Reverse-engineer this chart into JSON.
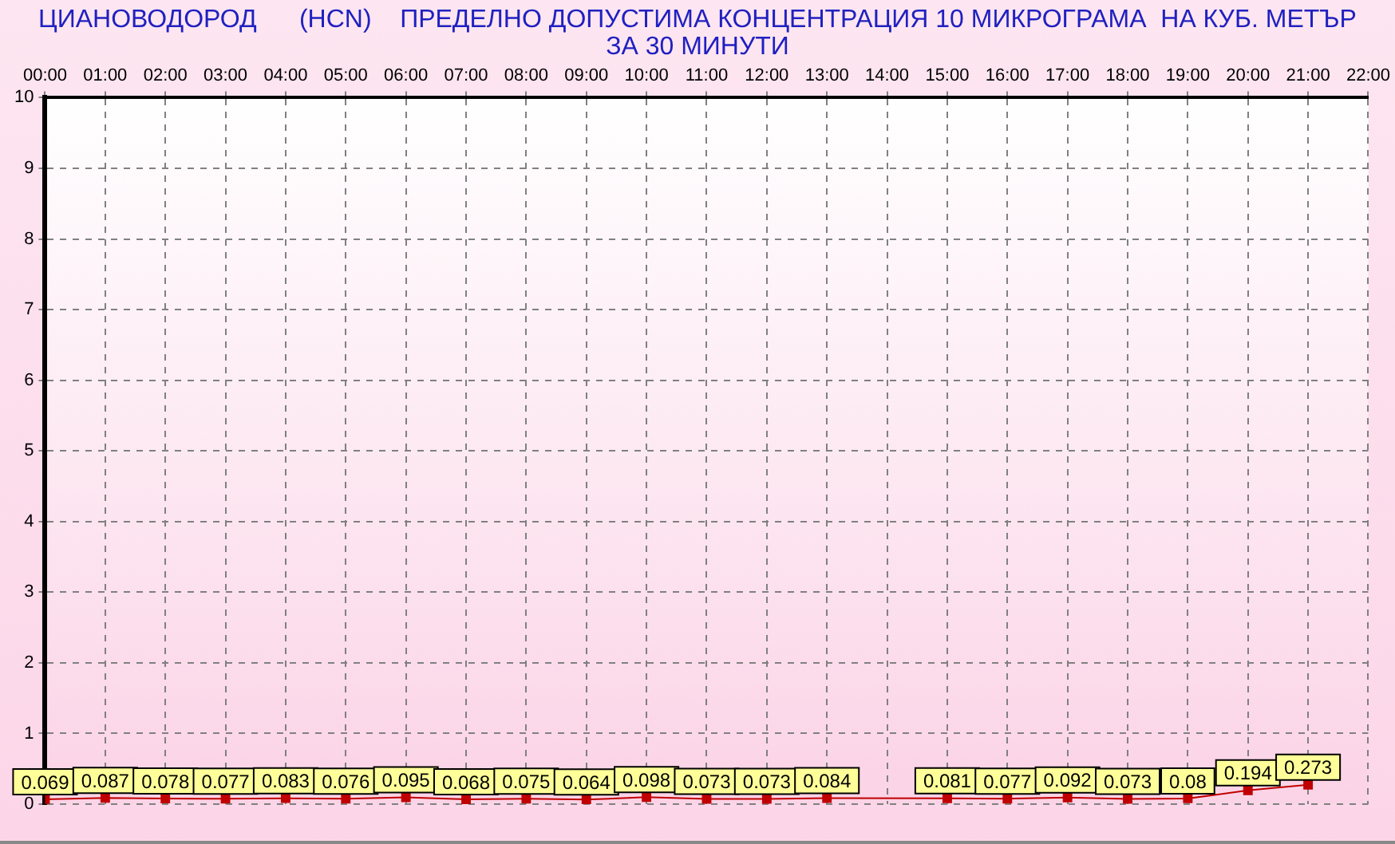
{
  "chart_data": {
    "type": "line",
    "title": "ЦИАНОВОДОРОД      (HCN)    ПРЕДЕЛНО ДОПУСТИМА КОНЦЕНТРАЦИЯ 10 МИКРОГРАМА  НА КУБ. МЕТЪР\nЗА 30 МИНУТИ",
    "x": [
      0,
      1,
      2,
      3,
      4,
      5,
      6,
      7,
      8,
      9,
      10,
      11,
      12,
      13,
      15,
      16,
      17,
      18,
      19,
      20,
      21
    ],
    "series": [
      {
        "color": "#c00000",
        "values": [
          0.069,
          0.087,
          0.078,
          0.077,
          0.083,
          0.076,
          0.095,
          0.068,
          0.075,
          0.064,
          0.098,
          0.073,
          0.073,
          0.084,
          0.081,
          0.077,
          0.092,
          0.073,
          0.08,
          0.194,
          0.273
        ]
      }
    ],
    "xlim": [
      0,
      22
    ],
    "xticks": [
      {
        "value": 0,
        "label": "00:00"
      },
      {
        "value": 1,
        "label": "01:00"
      },
      {
        "value": 2,
        "label": "02:00"
      },
      {
        "value": 3,
        "label": "03:00"
      },
      {
        "value": 4,
        "label": "04:00"
      },
      {
        "value": 5,
        "label": "05:00"
      },
      {
        "value": 6,
        "label": "06:00"
      },
      {
        "value": 7,
        "label": "07:00"
      },
      {
        "value": 8,
        "label": "08:00"
      },
      {
        "value": 9,
        "label": "09:00"
      },
      {
        "value": 10,
        "label": "10:00"
      },
      {
        "value": 11,
        "label": "11:00"
      },
      {
        "value": 12,
        "label": "12:00"
      },
      {
        "value": 13,
        "label": "13:00"
      },
      {
        "value": 14,
        "label": "14:00"
      },
      {
        "value": 15,
        "label": "15:00"
      },
      {
        "value": 16,
        "label": "16:00"
      },
      {
        "value": 17,
        "label": "17:00"
      },
      {
        "value": 18,
        "label": "18:00"
      },
      {
        "value": 19,
        "label": "19:00"
      },
      {
        "value": 20,
        "label": "20:00"
      },
      {
        "value": 21,
        "label": "21:00"
      },
      {
        "value": 22,
        "label": "22:00"
      }
    ],
    "ylim": [
      0,
      10
    ],
    "yticks": [
      0,
      1,
      2,
      3,
      4,
      5,
      6,
      7,
      8,
      9,
      10
    ],
    "grid": true,
    "marker": "square",
    "line_style": "solid",
    "data_labels": true,
    "legend": false
  }
}
